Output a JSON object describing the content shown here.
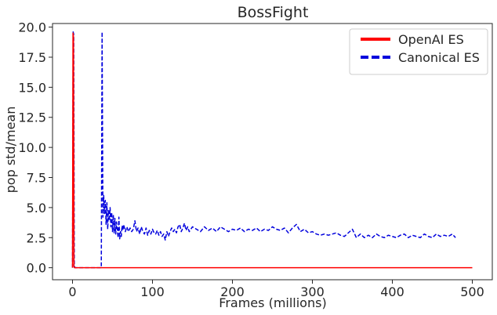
{
  "chart_data": {
    "type": "line",
    "title": "BossFight",
    "xlabel": "Frames (millions)",
    "ylabel": "pop std/mean",
    "xlim": [
      -25,
      525
    ],
    "ylim": [
      -1,
      20.3
    ],
    "xticks": [
      0,
      100,
      200,
      300,
      400,
      500
    ],
    "xtick_labels": [
      "0",
      "100",
      "200",
      "300",
      "400",
      "500"
    ],
    "yticks": [
      0,
      2.5,
      5,
      7.5,
      10,
      12.5,
      15,
      17.5,
      20
    ],
    "ytick_labels": [
      "0.0",
      "2.5",
      "5.0",
      "7.5",
      "10.0",
      "12.5",
      "15.0",
      "17.5",
      "20.0"
    ],
    "grid": false,
    "legend": "top-right",
    "series": [
      {
        "name": "OpenAI ES",
        "color": "#ff0000",
        "style": "solid",
        "x": [
          0,
          0.6,
          1.2,
          1.8,
          2.4,
          500
        ],
        "y": [
          0,
          19.5,
          19.2,
          0.1,
          0,
          0
        ]
      },
      {
        "name": "Canonical ES",
        "color": "#0000dd",
        "style": "dashed",
        "x": [
          0,
          0.8,
          1.5,
          2.2,
          3,
          36,
          37,
          38,
          39,
          40,
          41,
          42,
          43,
          44,
          45,
          46,
          47,
          48,
          49,
          50,
          51,
          52,
          53,
          54,
          55,
          56,
          57,
          58,
          59,
          60,
          61,
          62,
          63,
          64,
          66,
          68,
          70,
          72,
          74,
          76,
          78,
          80,
          82,
          84,
          86,
          88,
          90,
          92,
          94,
          96,
          98,
          100,
          102,
          104,
          106,
          108,
          110,
          112,
          114,
          116,
          118,
          120,
          122,
          124,
          126,
          128,
          130,
          132,
          134,
          136,
          138,
          140,
          142,
          144,
          146,
          148,
          150,
          155,
          160,
          165,
          170,
          175,
          180,
          185,
          190,
          195,
          200,
          205,
          210,
          215,
          220,
          225,
          230,
          235,
          240,
          245,
          250,
          255,
          260,
          265,
          270,
          275,
          280,
          285,
          290,
          295,
          300,
          305,
          310,
          315,
          320,
          325,
          330,
          335,
          340,
          345,
          350,
          355,
          360,
          365,
          370,
          375,
          380,
          385,
          390,
          395,
          400,
          405,
          410,
          415,
          420,
          425,
          430,
          435,
          440,
          445,
          450,
          455,
          460,
          465,
          470,
          475,
          479
        ],
        "y": [
          0,
          19.6,
          19.4,
          0.2,
          0,
          0,
          19.6,
          4.2,
          6.0,
          4.5,
          5.6,
          3.6,
          5.4,
          3.2,
          4.8,
          3.9,
          5.0,
          3.4,
          4.6,
          3.0,
          4.4,
          2.9,
          4.1,
          2.8,
          3.8,
          3.2,
          2.5,
          4.2,
          2.4,
          3.0,
          2.6,
          3.5,
          3.1,
          3.6,
          3.0,
          3.4,
          3.0,
          3.3,
          3.0,
          3.2,
          3.9,
          3.0,
          3.3,
          2.8,
          3.4,
          3.0,
          2.8,
          3.3,
          2.7,
          3.1,
          2.8,
          3.2,
          2.9,
          2.8,
          3.1,
          2.7,
          3.0,
          2.6,
          2.8,
          2.3,
          3.0,
          2.6,
          3.0,
          3.3,
          3.0,
          3.2,
          2.9,
          3.4,
          3.6,
          3.0,
          3.3,
          3.7,
          3.1,
          3.4,
          3.0,
          3.2,
          3.4,
          3.2,
          3.0,
          3.4,
          3.1,
          3.3,
          3.0,
          3.4,
          3.2,
          3.0,
          3.2,
          3.1,
          3.3,
          3.0,
          3.2,
          3.1,
          3.3,
          3.0,
          3.2,
          3.1,
          3.4,
          3.2,
          3.1,
          3.3,
          2.9,
          3.3,
          3.6,
          3.0,
          3.2,
          2.9,
          3.0,
          2.8,
          2.7,
          2.8,
          2.7,
          2.8,
          2.9,
          2.7,
          2.6,
          2.9,
          3.2,
          2.5,
          2.8,
          2.5,
          2.7,
          2.5,
          2.8,
          2.6,
          2.5,
          2.7,
          2.6,
          2.5,
          2.7,
          2.8,
          2.5,
          2.7,
          2.6,
          2.5,
          2.8,
          2.6,
          2.5,
          2.8,
          2.6,
          2.7,
          2.6,
          2.8,
          2.5
        ]
      }
    ]
  }
}
